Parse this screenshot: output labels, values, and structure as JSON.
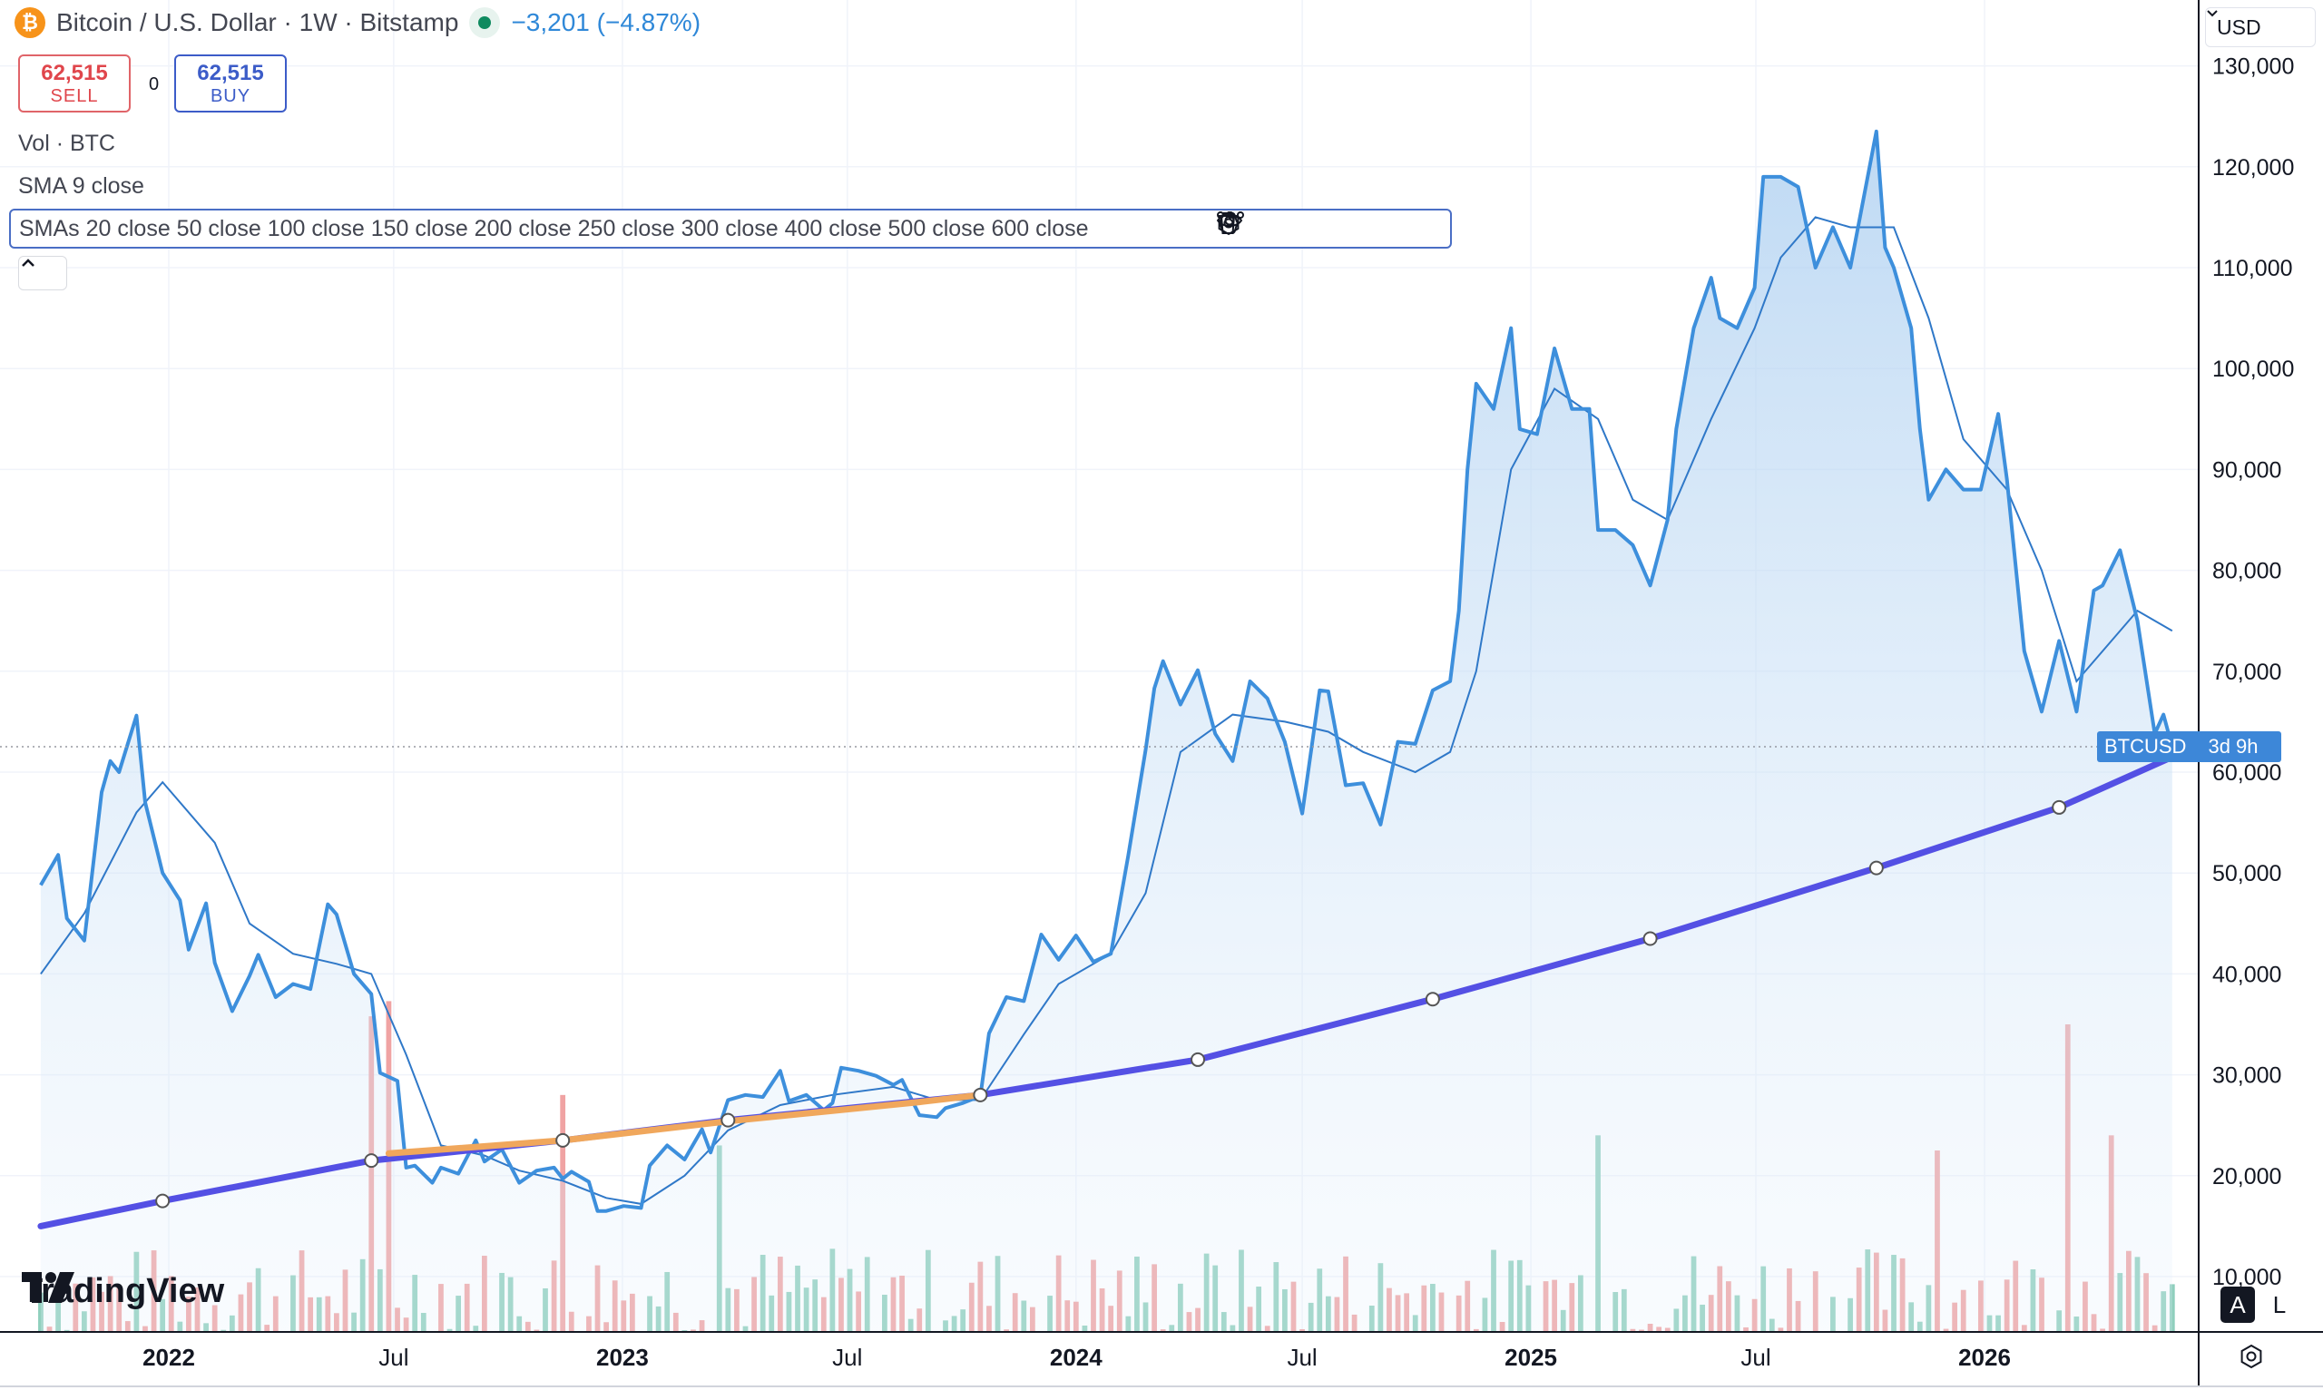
{
  "header": {
    "symbol_title": "Bitcoin / U.S. Dollar · 1W · Bitstamp",
    "change_text": "−3,201 (−4.87%)",
    "btc_icon_glyph": "₿"
  },
  "trade": {
    "sell_price": "62,515",
    "sell_label": "SELL",
    "spread": "0",
    "buy_price": "62,515",
    "buy_label": "BUY"
  },
  "indicators": {
    "vol": "Vol · BTC",
    "sma9": "SMA 9 close",
    "smas": "SMAs 20 close 50 close 100 close 150 close 200 close 250 close 300 close 400 close 500 close 600 close"
  },
  "currency": {
    "label": "USD"
  },
  "price_tag": {
    "symbol": "BTCUSD",
    "countdown": "3d 9h"
  },
  "logo": {
    "text": "TradingView"
  },
  "scale_buttons": {
    "auto": "A",
    "log": "L"
  },
  "colors": {
    "price_line": "#3d8fdc",
    "sma_line": "#2f78c8",
    "long_sma": "#5450e4",
    "long_sma_alt": "#f0a75c",
    "vol_up": "#8fcfbd",
    "vol_down": "#f0a3a3",
    "accent": "#2962ff"
  },
  "chart_data": {
    "type": "area",
    "interval": "1W",
    "x_range": [
      "2021-09-20",
      "2026-04-06"
    ],
    "y_range": [
      0,
      130000
    ],
    "y_ticks": [
      10000,
      20000,
      30000,
      40000,
      50000,
      60000,
      70000,
      80000,
      90000,
      100000,
      110000,
      120000,
      130000
    ],
    "y_tick_labels": [
      "10,000",
      "20,000",
      "30,000",
      "40,000",
      "50,000",
      "60,000",
      "70,000",
      "80,000",
      "90,000",
      "100,000",
      "110,000",
      "120,000",
      "130,000"
    ],
    "x_ticks": [
      {
        "date": "2022-01-01",
        "label": "2022",
        "bold": true
      },
      {
        "date": "2022-07-01",
        "label": "Jul",
        "bold": false
      },
      {
        "date": "2023-01-01",
        "label": "2023",
        "bold": true
      },
      {
        "date": "2023-07-01",
        "label": "Jul",
        "bold": false
      },
      {
        "date": "2024-01-01",
        "label": "2024",
        "bold": true
      },
      {
        "date": "2024-07-01",
        "label": "Jul",
        "bold": false
      },
      {
        "date": "2025-01-01",
        "label": "2025",
        "bold": true
      },
      {
        "date": "2025-07-01",
        "label": "Jul",
        "bold": false
      },
      {
        "date": "2026-01-01",
        "label": "2026",
        "bold": true
      }
    ],
    "last_price": 62515,
    "price": [
      [
        "2021-09-20",
        48800
      ],
      [
        "2021-10-04",
        51800
      ],
      [
        "2021-10-11",
        45500
      ],
      [
        "2021-10-25",
        43300
      ],
      [
        "2021-11-08",
        58000
      ],
      [
        "2021-11-15",
        61100
      ],
      [
        "2021-11-22",
        60000
      ],
      [
        "2021-12-06",
        65600
      ],
      [
        "2021-12-13",
        57000
      ],
      [
        "2021-12-27",
        50000
      ],
      [
        "2022-01-10",
        47300
      ],
      [
        "2022-01-17",
        42400
      ],
      [
        "2022-01-31",
        47000
      ],
      [
        "2022-02-07",
        41100
      ],
      [
        "2022-02-21",
        36300
      ],
      [
        "2022-03-07",
        39800
      ],
      [
        "2022-03-14",
        41900
      ],
      [
        "2022-03-28",
        37700
      ],
      [
        "2022-04-11",
        39000
      ],
      [
        "2022-04-25",
        38500
      ],
      [
        "2022-05-09",
        46900
      ],
      [
        "2022-05-16",
        45900
      ],
      [
        "2022-05-30",
        40000
      ],
      [
        "2022-06-13",
        38000
      ],
      [
        "2022-06-20",
        30200
      ],
      [
        "2022-07-04",
        29400
      ],
      [
        "2022-07-11",
        20800
      ],
      [
        "2022-07-18",
        21000
      ],
      [
        "2022-08-01",
        19300
      ],
      [
        "2022-08-08",
        20800
      ],
      [
        "2022-08-22",
        20200
      ],
      [
        "2022-09-05",
        23500
      ],
      [
        "2022-09-12",
        21400
      ],
      [
        "2022-09-26",
        22600
      ],
      [
        "2022-10-10",
        19300
      ],
      [
        "2022-10-24",
        20500
      ],
      [
        "2022-11-07",
        20800
      ],
      [
        "2022-11-14",
        19700
      ],
      [
        "2022-11-21",
        20400
      ],
      [
        "2022-12-05",
        19400
      ],
      [
        "2022-12-12",
        16500
      ],
      [
        "2022-12-19",
        16500
      ],
      [
        "2023-01-02",
        17000
      ],
      [
        "2023-01-16",
        16800
      ],
      [
        "2023-01-23",
        21000
      ],
      [
        "2023-02-06",
        23000
      ],
      [
        "2023-02-20",
        21600
      ],
      [
        "2023-03-06",
        24600
      ],
      [
        "2023-03-13",
        22300
      ],
      [
        "2023-03-27",
        27500
      ],
      [
        "2023-04-10",
        28000
      ],
      [
        "2023-04-24",
        27800
      ],
      [
        "2023-05-08",
        30400
      ],
      [
        "2023-05-15",
        27400
      ],
      [
        "2023-05-29",
        28000
      ],
      [
        "2023-06-12",
        26500
      ],
      [
        "2023-06-19",
        27200
      ],
      [
        "2023-06-26",
        30700
      ],
      [
        "2023-07-10",
        30400
      ],
      [
        "2023-07-24",
        29900
      ],
      [
        "2023-08-07",
        29000
      ],
      [
        "2023-08-14",
        29500
      ],
      [
        "2023-08-28",
        26000
      ],
      [
        "2023-09-11",
        25800
      ],
      [
        "2023-09-18",
        26700
      ],
      [
        "2023-10-02",
        27200
      ],
      [
        "2023-10-16",
        27900
      ],
      [
        "2023-10-23",
        34100
      ],
      [
        "2023-11-06",
        37700
      ],
      [
        "2023-11-20",
        37300
      ],
      [
        "2023-12-04",
        43900
      ],
      [
        "2023-12-18",
        41400
      ],
      [
        "2024-01-01",
        43800
      ],
      [
        "2024-01-15",
        41200
      ],
      [
        "2024-01-29",
        42000
      ],
      [
        "2024-02-12",
        51700
      ],
      [
        "2024-02-26",
        62200
      ],
      [
        "2024-03-04",
        68300
      ],
      [
        "2024-03-11",
        71000
      ],
      [
        "2024-03-25",
        66700
      ],
      [
        "2024-04-08",
        70100
      ],
      [
        "2024-04-22",
        63800
      ],
      [
        "2024-05-06",
        61100
      ],
      [
        "2024-05-20",
        69000
      ],
      [
        "2024-06-03",
        67300
      ],
      [
        "2024-06-17",
        63000
      ],
      [
        "2024-07-01",
        55900
      ],
      [
        "2024-07-15",
        68100
      ],
      [
        "2024-07-22",
        68000
      ],
      [
        "2024-08-05",
        58700
      ],
      [
        "2024-08-19",
        58900
      ],
      [
        "2024-09-02",
        54800
      ],
      [
        "2024-09-16",
        63000
      ],
      [
        "2024-09-30",
        62800
      ],
      [
        "2024-10-14",
        68100
      ],
      [
        "2024-10-28",
        69000
      ],
      [
        "2024-11-04",
        76000
      ],
      [
        "2024-11-11",
        90000
      ],
      [
        "2024-11-18",
        98500
      ],
      [
        "2024-12-02",
        96000
      ],
      [
        "2024-12-16",
        104000
      ],
      [
        "2024-12-23",
        94000
      ],
      [
        "2025-01-06",
        93500
      ],
      [
        "2025-01-20",
        102000
      ],
      [
        "2025-02-03",
        96000
      ],
      [
        "2025-02-17",
        96000
      ],
      [
        "2025-02-24",
        84000
      ],
      [
        "2025-03-10",
        84000
      ],
      [
        "2025-03-24",
        82500
      ],
      [
        "2025-04-07",
        78500
      ],
      [
        "2025-04-21",
        85000
      ],
      [
        "2025-04-28",
        94000
      ],
      [
        "2025-05-12",
        104000
      ],
      [
        "2025-05-26",
        109000
      ],
      [
        "2025-06-02",
        105000
      ],
      [
        "2025-06-16",
        104000
      ],
      [
        "2025-06-30",
        108000
      ],
      [
        "2025-07-07",
        119000
      ],
      [
        "2025-07-21",
        119000
      ],
      [
        "2025-08-04",
        118000
      ],
      [
        "2025-08-11",
        114000
      ],
      [
        "2025-08-18",
        110000
      ],
      [
        "2025-09-01",
        114000
      ],
      [
        "2025-09-15",
        110000
      ],
      [
        "2025-10-06",
        123500
      ],
      [
        "2025-10-13",
        112000
      ],
      [
        "2025-10-20",
        110000
      ],
      [
        "2025-11-03",
        104000
      ],
      [
        "2025-11-10",
        94000
      ],
      [
        "2025-11-17",
        87000
      ],
      [
        "2025-12-01",
        90000
      ],
      [
        "2025-12-15",
        88000
      ],
      [
        "2025-12-29",
        88000
      ],
      [
        "2026-01-12",
        95500
      ],
      [
        "2026-01-19",
        89000
      ],
      [
        "2026-02-02",
        72000
      ],
      [
        "2026-02-16",
        66000
      ],
      [
        "2026-03-02",
        73000
      ],
      [
        "2026-03-16",
        66000
      ],
      [
        "2026-03-30",
        78000
      ],
      [
        "2026-04-06",
        78500
      ],
      [
        "2026-04-20",
        82000
      ],
      [
        "2026-05-04",
        75000
      ],
      [
        "2026-05-18",
        63800
      ],
      [
        "2026-05-25",
        65700
      ],
      [
        "2026-06-01",
        62515
      ]
    ],
    "sma9": [
      [
        "2021-09-20",
        40000
      ],
      [
        "2021-10-25",
        46000
      ],
      [
        "2021-12-06",
        56000
      ],
      [
        "2021-12-27",
        59000
      ],
      [
        "2022-02-07",
        53000
      ],
      [
        "2022-03-07",
        45000
      ],
      [
        "2022-04-11",
        42000
      ],
      [
        "2022-05-16",
        41000
      ],
      [
        "2022-06-13",
        40000
      ],
      [
        "2022-07-11",
        32000
      ],
      [
        "2022-08-08",
        23000
      ],
      [
        "2022-09-12",
        22000
      ],
      [
        "2022-10-10",
        20500
      ],
      [
        "2022-11-14",
        19500
      ],
      [
        "2022-12-19",
        17800
      ],
      [
        "2023-01-16",
        17200
      ],
      [
        "2023-02-20",
        20000
      ],
      [
        "2023-03-27",
        24500
      ],
      [
        "2023-05-08",
        27000
      ],
      [
        "2023-06-19",
        28000
      ],
      [
        "2023-08-07",
        28800
      ],
      [
        "2023-09-11",
        27500
      ],
      [
        "2023-10-16",
        27500
      ],
      [
        "2023-11-20",
        34000
      ],
      [
        "2023-12-18",
        39000
      ],
      [
        "2024-01-29",
        42000
      ],
      [
        "2024-02-26",
        48000
      ],
      [
        "2024-03-25",
        62000
      ],
      [
        "2024-05-06",
        65700
      ],
      [
        "2024-06-17",
        65000
      ],
      [
        "2024-07-22",
        64000
      ],
      [
        "2024-08-19",
        62000
      ],
      [
        "2024-09-30",
        60000
      ],
      [
        "2024-10-28",
        62000
      ],
      [
        "2024-11-18",
        70000
      ],
      [
        "2024-12-16",
        90000
      ],
      [
        "2025-01-20",
        98000
      ],
      [
        "2025-02-24",
        95000
      ],
      [
        "2025-03-24",
        87000
      ],
      [
        "2025-04-21",
        85000
      ],
      [
        "2025-05-26",
        95000
      ],
      [
        "2025-06-30",
        104000
      ],
      [
        "2025-07-21",
        111000
      ],
      [
        "2025-08-18",
        115000
      ],
      [
        "2025-09-15",
        114000
      ],
      [
        "2025-10-20",
        114000
      ],
      [
        "2025-11-17",
        105000
      ],
      [
        "2025-12-15",
        93000
      ],
      [
        "2026-01-19",
        88000
      ],
      [
        "2026-02-16",
        80000
      ],
      [
        "2026-03-16",
        69000
      ],
      [
        "2026-04-06",
        72000
      ],
      [
        "2026-05-04",
        76000
      ],
      [
        "2026-06-01",
        74000
      ]
    ],
    "long_sma": [
      [
        "2021-09-20",
        15000
      ],
      [
        "2021-12-27",
        17500
      ],
      [
        "2022-06-13",
        21500
      ],
      [
        "2022-11-14",
        23500
      ],
      [
        "2023-03-27",
        25500
      ],
      [
        "2023-10-16",
        28000
      ],
      [
        "2024-04-08",
        31500
      ],
      [
        "2024-10-14",
        37500
      ],
      [
        "2025-04-07",
        43500
      ],
      [
        "2025-10-06",
        50500
      ],
      [
        "2026-03-02",
        56500
      ],
      [
        "2026-06-01",
        61500
      ]
    ],
    "long_sma_alt_segment": [
      [
        "2022-06-27",
        22200
      ],
      [
        "2022-11-14",
        23500
      ],
      [
        "2023-03-27",
        25400
      ],
      [
        "2023-08-28",
        27300
      ],
      [
        "2023-10-16",
        28000
      ]
    ],
    "sma_markers": [
      "2021-12-27",
      "2022-06-13",
      "2022-11-14",
      "2023-03-27",
      "2023-10-16",
      "2024-04-08",
      "2024-10-14",
      "2025-04-07",
      "2025-10-06",
      "2026-03-02"
    ],
    "volume_spikes": [
      [
        "2022-06-13",
        35800,
        "down"
      ],
      [
        "2022-06-27",
        37300,
        "down"
      ],
      [
        "2022-11-14",
        28000,
        "down"
      ],
      [
        "2023-03-20",
        23000,
        "up"
      ],
      [
        "2025-02-24",
        24000,
        "up"
      ],
      [
        "2025-11-24",
        22500,
        "down"
      ],
      [
        "2026-03-09",
        35000,
        "down"
      ],
      [
        "2026-04-13",
        24000,
        "down"
      ]
    ]
  }
}
